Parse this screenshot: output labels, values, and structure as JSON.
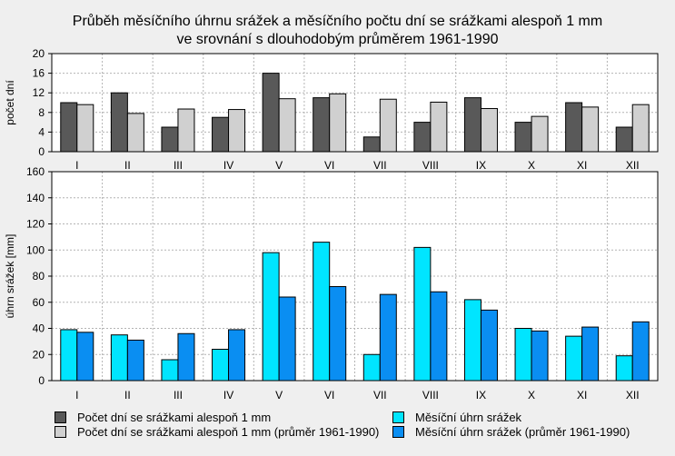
{
  "title_line1": "Průběh měsíčního úhrnu srážek a měsíčního počtu dní se srážkami alespoň 1 mm",
  "title_line2": "ve srovnání s dlouhodobým průměrem 1961-1990",
  "colors": {
    "days": "#595959",
    "days_avg": "#d0d0d0",
    "precip": "#00e5ff",
    "precip_avg": "#0a8ef2",
    "grid": "#b4b4b4",
    "background": "#efefef",
    "plot_bg": "#ffffff"
  },
  "legend": [
    {
      "label": "Počet dní se srážkami alespoň 1 mm",
      "color": "#595959"
    },
    {
      "label": "Počet dní se srážkami alespoň 1 mm (průměr 1961-1990)",
      "color": "#d0d0d0"
    },
    {
      "label": "Měsíční úhrn srážek",
      "color": "#00e5ff"
    },
    {
      "label": "Měsíční úhrn srážek (průměr 1961-1990)",
      "color": "#0a8ef2"
    }
  ],
  "chart_data": [
    {
      "type": "bar",
      "ylabel": "počet dní",
      "ylim": [
        0,
        20
      ],
      "yticks": [
        0,
        4,
        8,
        12,
        16,
        20
      ],
      "grid": true,
      "categories": [
        "I",
        "II",
        "III",
        "IV",
        "V",
        "VI",
        "VII",
        "VIII",
        "IX",
        "X",
        "XI",
        "XII"
      ],
      "series": [
        {
          "name": "Počet dní se srážkami alespoň 1 mm",
          "values": [
            10,
            12,
            5,
            7,
            16,
            11,
            3,
            6,
            11,
            6,
            10,
            5
          ]
        },
        {
          "name": "Počet dní se srážkami alespoň 1 mm (průměr 1961-1990)",
          "values": [
            9.6,
            7.8,
            8.7,
            8.6,
            10.8,
            11.8,
            10.7,
            10.1,
            8.8,
            7.2,
            9.1,
            9.6
          ]
        }
      ]
    },
    {
      "type": "bar",
      "ylabel": "úhrn srážek [mm]",
      "ylim": [
        0,
        160
      ],
      "yticks": [
        0,
        20,
        40,
        60,
        80,
        100,
        120,
        140,
        160
      ],
      "grid": true,
      "categories": [
        "I",
        "II",
        "III",
        "IV",
        "V",
        "VI",
        "VII",
        "VIII",
        "IX",
        "X",
        "XI",
        "XII"
      ],
      "series": [
        {
          "name": "Měsíční úhrn srážek",
          "values": [
            39,
            35,
            16,
            24,
            98,
            106,
            20,
            102,
            62,
            40,
            34,
            19
          ]
        },
        {
          "name": "Měsíční úhrn srážek (průměr 1961-1990)",
          "values": [
            37,
            31,
            36,
            39,
            64,
            72,
            66,
            68,
            54,
            38,
            41,
            45
          ]
        }
      ]
    }
  ]
}
